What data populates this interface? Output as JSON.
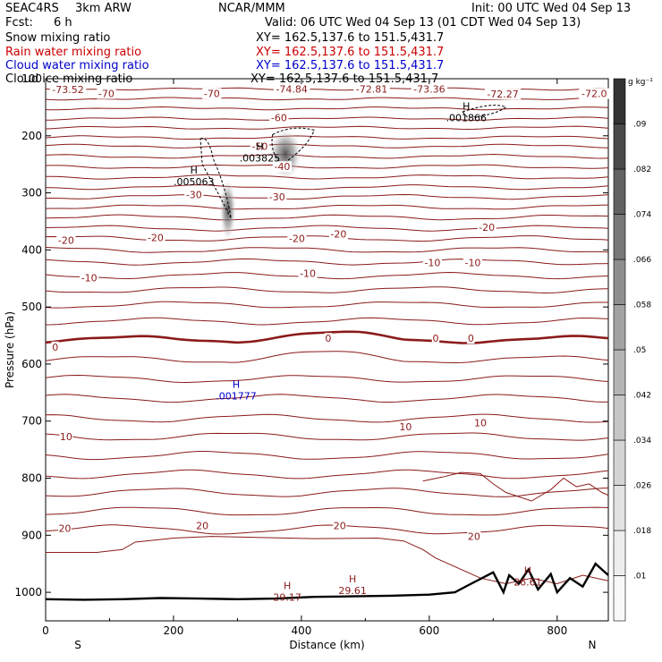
{
  "header": {
    "model": "SEAC4RS",
    "resolution": "3km ARW",
    "center": "NCAR/MMM",
    "init": "Init: 00 UTC Wed 04 Sep 13",
    "fcst_label": "Fcst:",
    "fcst_value": "6 h",
    "valid": "Valid: 06 UTC Wed 04 Sep 13 (01 CDT Wed 04 Sep 13)",
    "fields": [
      {
        "name": "Snow mixing ratio",
        "xy": "XY= 162.5,137.6 to 151.5,431.7",
        "color": "#000000"
      },
      {
        "name": "Rain water mixing ratio",
        "xy": "XY= 162.5,137.6 to 151.5,431.7",
        "color": "#cc0000"
      },
      {
        "name": "Cloud water mixing ratio",
        "xy": "XY= 162.5,137.6 to 151.5,431.7",
        "color": "#0000cc"
      },
      {
        "name": "Cloud ice mixing ratio",
        "xy": "XY= 162.5,137.6 to 151.5,431.7",
        "color": "#000000"
      }
    ]
  },
  "chart_data": {
    "type": "contour_cross_section",
    "xlabel": "Distance (km)",
    "ylabel": "Pressure (hPa)",
    "xlim": [
      0,
      880
    ],
    "ylim": [
      1050,
      100
    ],
    "x_ticks": [
      "0",
      "200",
      "400",
      "600",
      "800"
    ],
    "y_ticks": [
      "100",
      "200",
      "300",
      "400",
      "500",
      "600",
      "700",
      "800",
      "900",
      "1000"
    ],
    "left_end_label": "S",
    "right_end_label": "N",
    "colorbar": {
      "unit": "g kg⁻¹",
      "levels": [
        ".01",
        ".018",
        ".026",
        ".034",
        ".042",
        ".05",
        ".058",
        ".066",
        ".074",
        ".082",
        ".09"
      ],
      "colors": [
        "#f8f8f8",
        "#ededed",
        "#e2e2e2",
        "#d4d4d4",
        "#c5c5c5",
        "#b4b4b4",
        "#a2a2a2",
        "#8e8e8e",
        "#787878",
        "#626262",
        "#4a4a4a",
        "#333333"
      ]
    },
    "temperature_contour_color": "#8b1a1a",
    "temperature_contour_labels": [
      {
        "text": "-73.52",
        "x": 35,
        "p": 119
      },
      {
        "text": "-70",
        "x": 95,
        "p": 126
      },
      {
        "text": "-70",
        "x": 260,
        "p": 126
      },
      {
        "text": "-74.84",
        "x": 385,
        "p": 118
      },
      {
        "text": "-72.81",
        "x": 510,
        "p": 118
      },
      {
        "text": "-73.36",
        "x": 600,
        "p": 118
      },
      {
        "text": "-72.27",
        "x": 715,
        "p": 127
      },
      {
        "text": "-72.0",
        "x": 858,
        "p": 126
      },
      {
        "text": "-60",
        "x": 365,
        "p": 168
      },
      {
        "text": "-50",
        "x": 335,
        "p": 218
      },
      {
        "text": "-40",
        "x": 370,
        "p": 254
      },
      {
        "text": "-30",
        "x": 232,
        "p": 303
      },
      {
        "text": "-30",
        "x": 362,
        "p": 307
      },
      {
        "text": "-20",
        "x": 32,
        "p": 383
      },
      {
        "text": "-20",
        "x": 172,
        "p": 378
      },
      {
        "text": "-20",
        "x": 393,
        "p": 380
      },
      {
        "text": "-20",
        "x": 458,
        "p": 372
      },
      {
        "text": "-20",
        "x": 690,
        "p": 360
      },
      {
        "text": "-10",
        "x": 68,
        "p": 449
      },
      {
        "text": "-10",
        "x": 410,
        "p": 441
      },
      {
        "text": "-10",
        "x": 605,
        "p": 422
      },
      {
        "text": "-10",
        "x": 668,
        "p": 422
      },
      {
        "text": "0",
        "x": 15,
        "p": 570
      },
      {
        "text": "0",
        "x": 442,
        "p": 555
      },
      {
        "text": "0",
        "x": 610,
        "p": 555
      },
      {
        "text": "0",
        "x": 665,
        "p": 555
      },
      {
        "text": "10",
        "x": 32,
        "p": 727
      },
      {
        "text": "10",
        "x": 563,
        "p": 710
      },
      {
        "text": "10",
        "x": 680,
        "p": 703
      },
      {
        "text": "20",
        "x": 30,
        "p": 888
      },
      {
        "text": "20",
        "x": 245,
        "p": 883
      },
      {
        "text": "20",
        "x": 460,
        "p": 883
      },
      {
        "text": "20",
        "x": 670,
        "p": 902
      }
    ],
    "extrema": [
      {
        "marker": "H",
        "value": ".005063",
        "x": 232,
        "p": 282,
        "color": "#000000"
      },
      {
        "marker": "H",
        "value": ".003825",
        "x": 335,
        "p": 240,
        "color": "#000000"
      },
      {
        "marker": "H",
        "value": ".001866",
        "x": 658,
        "p": 170,
        "color": "#000000"
      },
      {
        "marker": "H",
        "value": ".001777",
        "x": 298,
        "p": 657,
        "color": "#0000cc"
      },
      {
        "marker": "H",
        "value": "29.17",
        "x": 378,
        "p": 1010,
        "color": "#8b1a1a"
      },
      {
        "marker": "H",
        "value": "29.61",
        "x": 480,
        "p": 998,
        "color": "#8b1a1a"
      },
      {
        "marker": "H",
        "value": "26.61",
        "x": 754,
        "p": 983,
        "color": "#8b1a1a"
      }
    ]
  }
}
